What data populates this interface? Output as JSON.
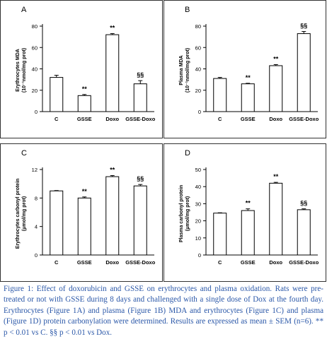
{
  "colors": {
    "caption": "#2a57a8",
    "bar_fill": "#ffffff",
    "axis": "#000000"
  },
  "caption": "Figure 1: Effect of doxorubicin and GSSE on erythrocytes and plasma oxidation. Rats were pre-treated or not with GSSE during 8 days and challenged with a single dose of Dox at the fourth day. Erythrocytes (Figure 1A) and plasma (Figure 1B) MDA and erythrocytes (Figure 1C) and plasma (Figure 1D) protein carbonylation were determined. Results are expressed as mean ± SEM (n=6). ** p < 0.01 vs C. §§ p < 0.01 vs Dox.",
  "chart_data": [
    {
      "panel": "A",
      "type": "bar",
      "ylabel": "Erythrocytes MDA",
      "ylabel2": "(10⁻¹nmol/mg prot)",
      "categories": [
        "C",
        "GSSE",
        "Doxo",
        "GSSE-Doxo"
      ],
      "values": [
        32,
        15,
        72,
        26
      ],
      "errors": [
        2,
        1,
        1,
        3
      ],
      "annotations": [
        "",
        "**",
        "**",
        "§§"
      ],
      "yticks": [
        0,
        20,
        40,
        60,
        80
      ],
      "ylim": [
        0,
        80
      ]
    },
    {
      "panel": "B",
      "type": "bar",
      "ylabel": "Plasma MDA",
      "ylabel2": "(10⁻¹nmol/mg prot)",
      "categories": [
        "C",
        "GSSE",
        "Doxo",
        "GSSE-Doxo"
      ],
      "values": [
        31,
        26,
        43,
        73
      ],
      "errors": [
        1,
        0.5,
        1,
        2
      ],
      "annotations": [
        "",
        "**",
        "**",
        "§§"
      ],
      "yticks": [
        0,
        20,
        40,
        60,
        80
      ],
      "ylim": [
        0,
        80
      ]
    },
    {
      "panel": "C",
      "type": "bar",
      "ylabel": "Erythrocytes carbonyl protein",
      "ylabel2": "(μmol/mg prot)",
      "categories": [
        "C",
        "GSSE",
        "Doxo",
        "GSSE-Doxo"
      ],
      "values": [
        9,
        8,
        11,
        9.7
      ],
      "errors": [
        0.05,
        0.15,
        0.15,
        0.2
      ],
      "annotations": [
        "",
        "**",
        "**",
        "§§"
      ],
      "yticks": [
        0,
        4,
        8,
        12
      ],
      "ylim": [
        0,
        12
      ]
    },
    {
      "panel": "D",
      "type": "bar",
      "ylabel": "Plasma carbonyl protein",
      "ylabel2": "(μmol/mg prot)",
      "categories": [
        "C",
        "GSSE",
        "Doxo",
        "GSSE-Doxo"
      ],
      "values": [
        24.5,
        26,
        42,
        26.5
      ],
      "errors": [
        0.2,
        1,
        0.5,
        0.5
      ],
      "annotations": [
        "",
        "**",
        "**",
        "§§"
      ],
      "yticks": [
        0,
        10,
        20,
        30,
        40,
        50
      ],
      "ylim": [
        0,
        50
      ]
    }
  ]
}
